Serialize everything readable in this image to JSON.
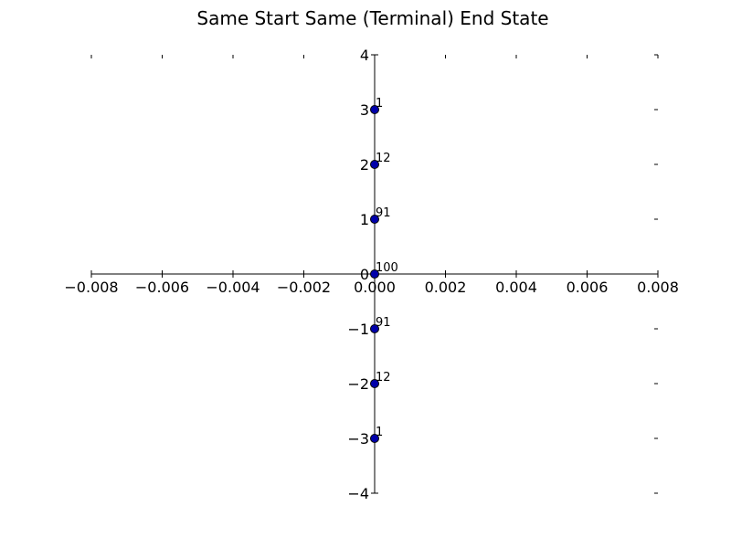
{
  "chart_data": {
    "type": "scatter",
    "title": "Same Start Same (Terminal) End State",
    "xlabel": "",
    "ylabel": "",
    "xlim": [
      -0.008,
      0.008
    ],
    "ylim": [
      -4,
      4
    ],
    "x_ticks": [
      -0.008,
      -0.006,
      -0.004,
      -0.002,
      0.0,
      0.002,
      0.004,
      0.006,
      0.008
    ],
    "x_tick_labels": [
      "−0.008",
      "−0.006",
      "−0.004",
      "−0.002",
      "0.000",
      "0.002",
      "0.004",
      "0.006",
      "0.008"
    ],
    "y_ticks": [
      4,
      3,
      2,
      1,
      0,
      -1,
      -2,
      -3,
      -4
    ],
    "y_tick_labels": [
      "4",
      "3",
      "2",
      "1",
      "0",
      "−1",
      "−2",
      "−3",
      "−4"
    ],
    "grid": false,
    "spines": "centered",
    "marker_color": "#0000aa",
    "series": [
      {
        "points": [
          {
            "x": 0.0,
            "y": 3,
            "label": "1"
          },
          {
            "x": 0.0,
            "y": 2,
            "label": "12"
          },
          {
            "x": 0.0,
            "y": 1,
            "label": "91"
          },
          {
            "x": 0.0,
            "y": 0,
            "label": "100"
          },
          {
            "x": 0.0,
            "y": -1,
            "label": "91"
          },
          {
            "x": 0.0,
            "y": -2,
            "label": "12"
          },
          {
            "x": 0.0,
            "y": -3,
            "label": "1"
          }
        ]
      }
    ]
  }
}
